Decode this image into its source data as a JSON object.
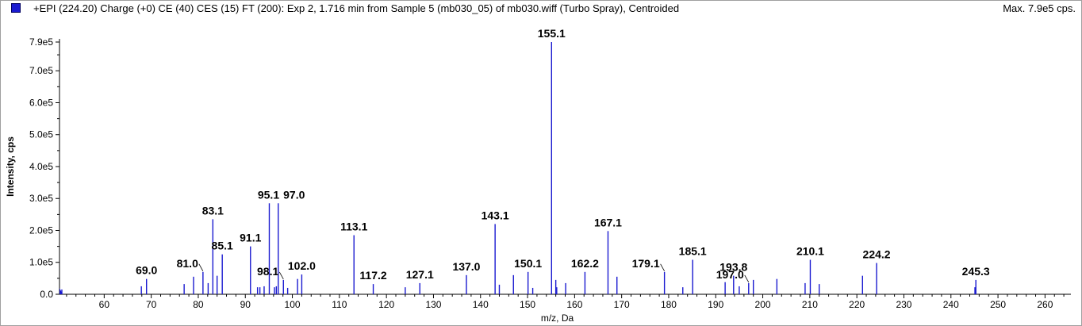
{
  "header": {
    "title": "+EPI (224.20) Charge (+0) CE (40) CES (15) FT (200): Exp 2, 1.716 min from Sample 5 (mb030_05) of mb030.wiff (Turbo Spray), Centroided",
    "max_label": "Max. 7.9e5 cps.",
    "series_color": "#1a1ad0"
  },
  "chart_data": {
    "type": "bar",
    "title": "+EPI (224.20) Charge (+0) CE (40) CES (15) FT (200): Exp 2, 1.716 min from Sample 5 (mb030_05) of mb030.wiff (Turbo Spray), Centroided",
    "xlabel": "m/z, Da",
    "ylabel": "Intensity, cps",
    "xlim": [
      50.5,
      265.5
    ],
    "ylim": [
      0,
      790000
    ],
    "x_ticks": [
      60,
      70,
      80,
      90,
      100,
      110,
      120,
      130,
      140,
      150,
      160,
      170,
      180,
      190,
      200,
      210,
      220,
      230,
      240,
      250,
      260
    ],
    "y_ticks": [
      {
        "value": 0,
        "label": "0.0"
      },
      {
        "value": 100000,
        "label": "1.0e5"
      },
      {
        "value": 200000,
        "label": "2.0e5"
      },
      {
        "value": 300000,
        "label": "3.0e5"
      },
      {
        "value": 400000,
        "label": "4.0e5"
      },
      {
        "value": 500000,
        "label": "5.0e5"
      },
      {
        "value": 600000,
        "label": "6.0e5"
      },
      {
        "value": 700000,
        "label": "7.0e5"
      },
      {
        "value": 790000,
        "label": "7.9e5"
      }
    ],
    "peaks": [
      {
        "x": 51.0,
        "y": 15000
      },
      {
        "x": 67.9,
        "y": 25000
      },
      {
        "x": 69.0,
        "y": 48000
      },
      {
        "x": 77.0,
        "y": 32000
      },
      {
        "x": 79.0,
        "y": 55000
      },
      {
        "x": 81.0,
        "y": 70000
      },
      {
        "x": 82.1,
        "y": 35000
      },
      {
        "x": 83.1,
        "y": 235000
      },
      {
        "x": 84.0,
        "y": 58000
      },
      {
        "x": 85.1,
        "y": 125000
      },
      {
        "x": 91.1,
        "y": 150000
      },
      {
        "x": 92.6,
        "y": 22000
      },
      {
        "x": 93.1,
        "y": 22000
      },
      {
        "x": 94.0,
        "y": 25000
      },
      {
        "x": 95.1,
        "y": 285000
      },
      {
        "x": 96.2,
        "y": 22000
      },
      {
        "x": 96.6,
        "y": 25000
      },
      {
        "x": 97.0,
        "y": 285000
      },
      {
        "x": 98.1,
        "y": 45000
      },
      {
        "x": 99.0,
        "y": 20000
      },
      {
        "x": 101.1,
        "y": 48000
      },
      {
        "x": 102.0,
        "y": 62000
      },
      {
        "x": 113.1,
        "y": 185000
      },
      {
        "x": 117.2,
        "y": 32000
      },
      {
        "x": 124.0,
        "y": 22000
      },
      {
        "x": 127.1,
        "y": 35000
      },
      {
        "x": 137.0,
        "y": 60000
      },
      {
        "x": 143.1,
        "y": 220000
      },
      {
        "x": 144.0,
        "y": 30000
      },
      {
        "x": 147.0,
        "y": 60000
      },
      {
        "x": 150.1,
        "y": 70000
      },
      {
        "x": 151.1,
        "y": 20000
      },
      {
        "x": 155.1,
        "y": 790000
      },
      {
        "x": 156.0,
        "y": 45000
      },
      {
        "x": 156.2,
        "y": 22000
      },
      {
        "x": 158.1,
        "y": 35000
      },
      {
        "x": 162.2,
        "y": 70000
      },
      {
        "x": 167.1,
        "y": 198000
      },
      {
        "x": 169.0,
        "y": 55000
      },
      {
        "x": 179.1,
        "y": 70000
      },
      {
        "x": 183.0,
        "y": 22000
      },
      {
        "x": 185.1,
        "y": 108000
      },
      {
        "x": 192.0,
        "y": 38000
      },
      {
        "x": 193.8,
        "y": 58000
      },
      {
        "x": 195.0,
        "y": 25000
      },
      {
        "x": 197.0,
        "y": 35000
      },
      {
        "x": 198.0,
        "y": 45000
      },
      {
        "x": 203.0,
        "y": 48000
      },
      {
        "x": 209.0,
        "y": 35000
      },
      {
        "x": 210.1,
        "y": 108000
      },
      {
        "x": 212.0,
        "y": 32000
      },
      {
        "x": 221.2,
        "y": 58000
      },
      {
        "x": 224.2,
        "y": 98000
      },
      {
        "x": 245.1,
        "y": 22000
      },
      {
        "x": 245.3,
        "y": 45000
      }
    ],
    "annotations": [
      {
        "text": "69.0",
        "x": 69.0,
        "y": 48000
      },
      {
        "text": "81.0",
        "x": 81.0,
        "y": 70000,
        "leader": true
      },
      {
        "text": "83.1",
        "x": 83.1,
        "y": 235000
      },
      {
        "text": "85.1",
        "x": 85.1,
        "y": 125000
      },
      {
        "text": "91.1",
        "x": 91.1,
        "y": 150000
      },
      {
        "text": "95.1",
        "x": 95.1,
        "y": 285000
      },
      {
        "text": "97.0",
        "x": 97.0,
        "y": 285000
      },
      {
        "text": "98.1",
        "x": 98.1,
        "y": 45000,
        "leader": true
      },
      {
        "text": "102.0",
        "x": 102.0,
        "y": 62000
      },
      {
        "text": "113.1",
        "x": 113.1,
        "y": 185000
      },
      {
        "text": "117.2",
        "x": 117.2,
        "y": 32000
      },
      {
        "text": "127.1",
        "x": 127.1,
        "y": 35000
      },
      {
        "text": "137.0",
        "x": 137.0,
        "y": 60000
      },
      {
        "text": "143.1",
        "x": 143.1,
        "y": 220000
      },
      {
        "text": "150.1",
        "x": 150.1,
        "y": 70000
      },
      {
        "text": "155.1",
        "x": 155.1,
        "y": 790000
      },
      {
        "text": "162.2",
        "x": 162.2,
        "y": 70000
      },
      {
        "text": "167.1",
        "x": 167.1,
        "y": 198000
      },
      {
        "text": "179.1",
        "x": 179.1,
        "y": 70000,
        "leader": true
      },
      {
        "text": "185.1",
        "x": 185.1,
        "y": 108000
      },
      {
        "text": "193.8",
        "x": 193.8,
        "y": 58000
      },
      {
        "text": "197.0",
        "x": 197.0,
        "y": 35000,
        "leader": true
      },
      {
        "text": "210.1",
        "x": 210.1,
        "y": 108000
      },
      {
        "text": "224.2",
        "x": 224.2,
        "y": 98000
      },
      {
        "text": "245.3",
        "x": 245.3,
        "y": 45000
      }
    ]
  }
}
